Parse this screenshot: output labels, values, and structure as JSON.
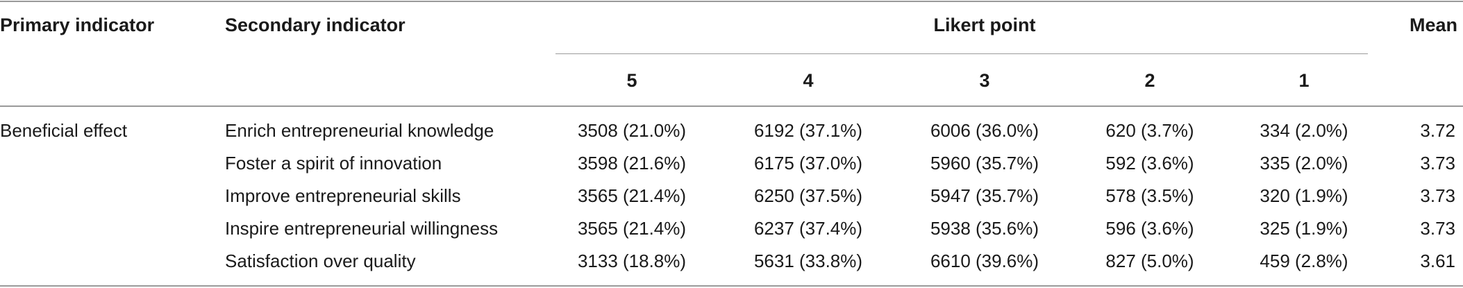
{
  "headers": {
    "primary": "Primary indicator",
    "secondary": "Secondary indicator",
    "likert": "Likert point",
    "mean": "Mean",
    "points": [
      "5",
      "4",
      "3",
      "2",
      "1"
    ]
  },
  "primary_indicator": "Beneficial effect",
  "rows": [
    {
      "secondary": "Enrich entrepreneurial knowledge",
      "p5": "3508 (21.0%)",
      "p4": "6192 (37.1%)",
      "p3": "6006 (36.0%)",
      "p2": "620 (3.7%)",
      "p1": "334 (2.0%)",
      "mean": "3.72"
    },
    {
      "secondary": "Foster a spirit of innovation",
      "p5": "3598 (21.6%)",
      "p4": "6175 (37.0%)",
      "p3": "5960 (35.7%)",
      "p2": "592 (3.6%)",
      "p1": "335 (2.0%)",
      "mean": "3.73"
    },
    {
      "secondary": "Improve entrepreneurial skills",
      "p5": "3565 (21.4%)",
      "p4": "6250 (37.5%)",
      "p3": "5947 (35.7%)",
      "p2": "578 (3.5%)",
      "p1": "320 (1.9%)",
      "mean": "3.73"
    },
    {
      "secondary": "Inspire entrepreneurial willingness",
      "p5": "3565 (21.4%)",
      "p4": "6237 (37.4%)",
      "p3": "5938 (35.6%)",
      "p2": "596 (3.6%)",
      "p1": "325 (1.9%)",
      "mean": "3.73"
    },
    {
      "secondary": "Satisfaction over quality",
      "p5": "3133 (18.8%)",
      "p4": "5631 (33.8%)",
      "p3": "6610 (39.6%)",
      "p2": "827 (5.0%)",
      "p1": "459 (2.8%)",
      "mean": "3.61"
    }
  ]
}
